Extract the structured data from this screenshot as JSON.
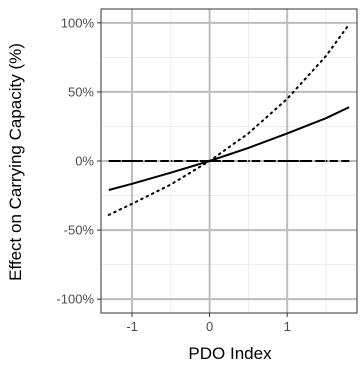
{
  "chart_data": {
    "type": "line",
    "title": "",
    "xlabel": "PDO Index",
    "ylabel": "Effect on Carrying Capacity (%)",
    "xlim": [
      -1.4,
      1.9
    ],
    "ylim": [
      -1.1,
      1.1
    ],
    "x_ticks": [
      {
        "value": -1,
        "label": "-1"
      },
      {
        "value": 0,
        "label": "0"
      },
      {
        "value": 1,
        "label": "1"
      }
    ],
    "y_ticks": [
      {
        "value": 1.0,
        "label": "100%"
      },
      {
        "value": 0.5,
        "label": "50%"
      },
      {
        "value": 0.0,
        "label": "0%"
      },
      {
        "value": -0.5,
        "label": "-50%"
      },
      {
        "value": -1.0,
        "label": "-100%"
      }
    ],
    "grid": true,
    "legend": "none",
    "series": [
      {
        "style": "solid",
        "x": [
          -1.3,
          -1.0,
          -0.5,
          0.0,
          0.5,
          1.0,
          1.5,
          1.8
        ],
        "values": [
          -0.21,
          -0.165,
          -0.085,
          0.0,
          0.095,
          0.2,
          0.31,
          0.39
        ]
      },
      {
        "style": "dotted",
        "x": [
          -1.3,
          -1.0,
          -0.5,
          0.0,
          0.5,
          1.0,
          1.5,
          1.8
        ],
        "values": [
          -0.39,
          -0.31,
          -0.17,
          0.0,
          0.2,
          0.45,
          0.76,
          0.99
        ]
      },
      {
        "style": "dashed",
        "x": [
          -1.3,
          1.8
        ],
        "values": [
          0.0,
          0.0
        ]
      },
      {
        "style": "dashdot",
        "x": [
          -1.3,
          1.8
        ],
        "values": [
          0.0,
          0.0
        ]
      }
    ],
    "colors": {
      "line": "#000000",
      "panel_border": "#333333",
      "grid_major": "#bdbdbd",
      "grid_minor": "#ececec",
      "tick_text": "#4d4d4d"
    }
  }
}
